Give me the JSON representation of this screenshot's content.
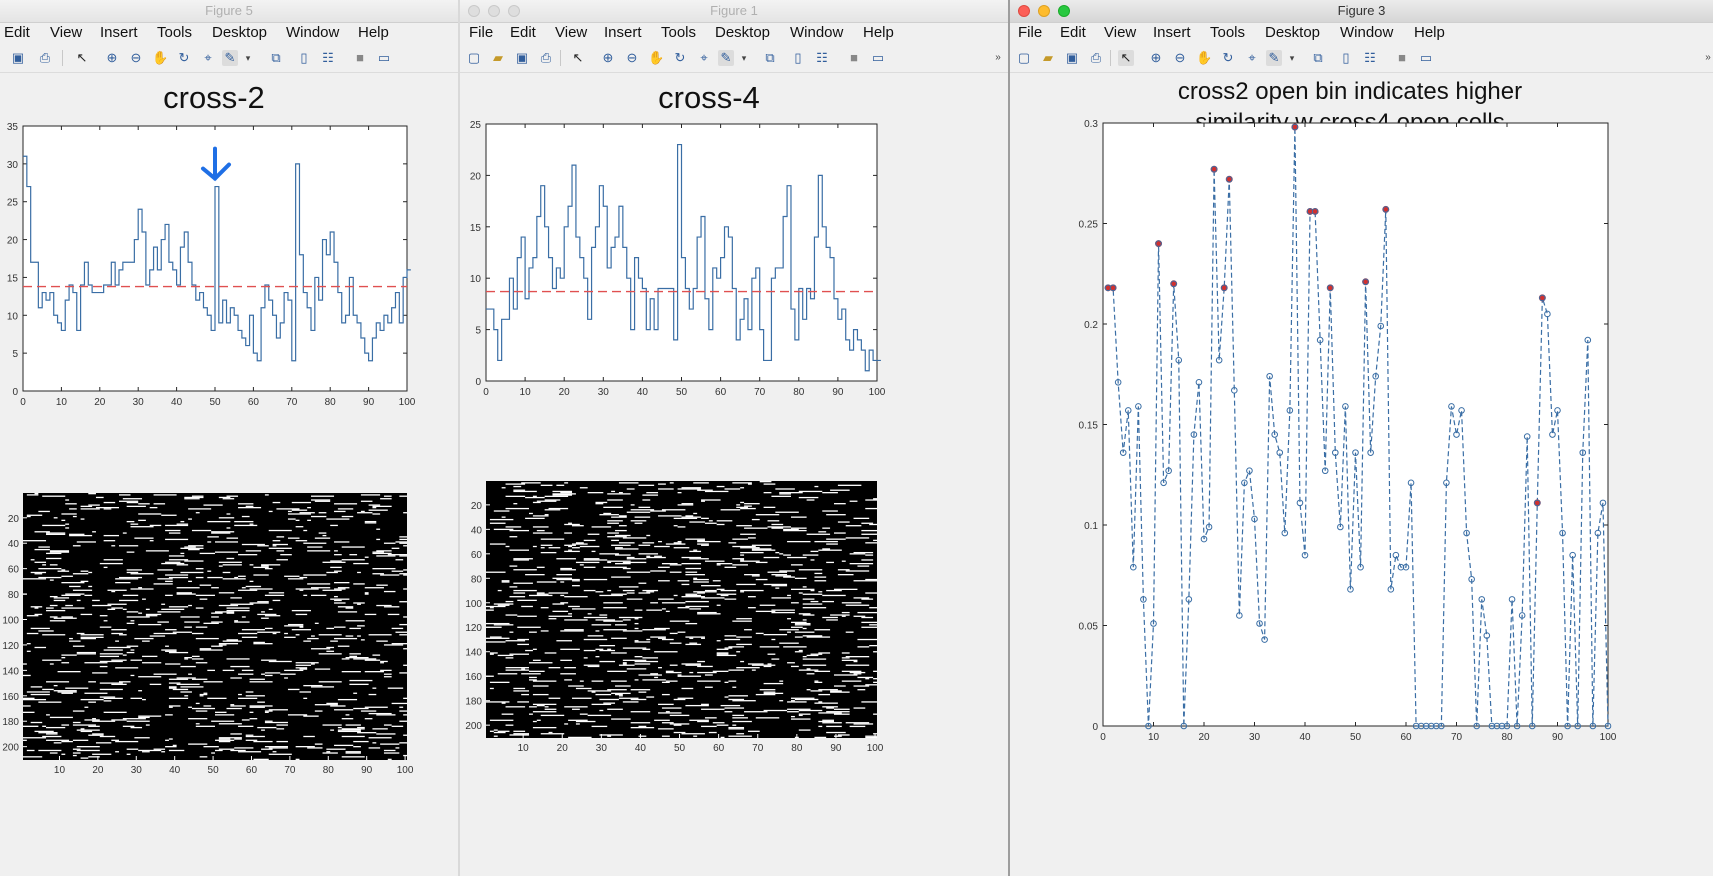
{
  "windows": [
    {
      "title": "Figure 5",
      "menu": [
        "Edit",
        "View",
        "Insert",
        "Tools",
        "Desktop",
        "Window",
        "Help"
      ],
      "plot_title": "cross-2"
    },
    {
      "title": "Figure 1",
      "menu": [
        "File",
        "Edit",
        "View",
        "Insert",
        "Tools",
        "Desktop",
        "Window",
        "Help"
      ],
      "plot_title": "cross-4"
    },
    {
      "title": "Figure 3",
      "menu": [
        "File",
        "Edit",
        "View",
        "Insert",
        "Tools",
        "Desktop",
        "Window",
        "Help"
      ],
      "plot_title_line1": "cross2 open bin indicates higher",
      "plot_title_line2": "similarity w cross4 open cells"
    }
  ],
  "colors": {
    "line": "#3a6ea5",
    "dashed_red": "#e05050",
    "arrow": "#1f6fe5",
    "marker_red": "#d03030"
  },
  "chart_data": [
    {
      "type": "line",
      "title": "cross-2",
      "style": "stairs",
      "xlim": [
        0,
        100
      ],
      "ylim": [
        0,
        35
      ],
      "xticks": [
        0,
        10,
        20,
        30,
        40,
        50,
        60,
        70,
        80,
        90,
        100
      ],
      "yticks": [
        0,
        5,
        10,
        15,
        20,
        25,
        30,
        35
      ],
      "y": [
        31,
        27,
        17,
        17,
        11,
        13,
        12,
        13,
        10,
        9,
        8,
        12,
        14,
        13,
        8,
        14,
        17,
        14,
        13,
        13,
        13,
        14,
        14,
        17,
        14,
        16,
        17,
        17,
        17,
        20,
        24,
        21,
        14,
        16,
        19,
        16,
        20,
        22,
        17,
        16,
        14,
        19,
        21,
        17,
        14,
        12,
        13,
        11,
        10,
        8,
        27,
        9,
        12,
        9,
        11,
        10,
        8,
        7,
        6,
        10,
        5,
        4,
        11,
        14,
        12,
        10,
        7,
        9,
        13,
        12,
        4,
        30,
        18,
        13,
        11,
        8,
        15,
        12,
        20,
        18,
        21,
        17,
        13,
        9,
        10,
        15,
        10,
        9,
        7,
        5,
        4,
        7,
        9,
        8,
        10,
        9,
        11,
        13,
        9,
        15,
        16
      ],
      "mean_line": 13.8,
      "annotation": "arrow at x=50"
    },
    {
      "type": "line",
      "title": "cross-4",
      "style": "stairs",
      "xlim": [
        0,
        100
      ],
      "ylim": [
        0,
        25
      ],
      "xticks": [
        0,
        10,
        20,
        30,
        40,
        50,
        60,
        70,
        80,
        90,
        100
      ],
      "yticks": [
        0,
        5,
        10,
        15,
        20,
        25
      ],
      "y": [
        7,
        7,
        5,
        2,
        6,
        6,
        10,
        7,
        12,
        14,
        8,
        11,
        12,
        16,
        19,
        15,
        12,
        9,
        11,
        10,
        15,
        17,
        21,
        14,
        12,
        10,
        6,
        13,
        15,
        19,
        17,
        11,
        13,
        14,
        17,
        13,
        10,
        5,
        12,
        10,
        9,
        5,
        8,
        5,
        9,
        9,
        9,
        9,
        4,
        23,
        12,
        9,
        7,
        9,
        14,
        16,
        8,
        5,
        11,
        10,
        12,
        15,
        14,
        9,
        4,
        6,
        8,
        5,
        10,
        11,
        5,
        2,
        2,
        10,
        11,
        11,
        16,
        19,
        7,
        4,
        9,
        6,
        9,
        8,
        14,
        20,
        15,
        13,
        12,
        8,
        6,
        7,
        4,
        3,
        5,
        4,
        3,
        1,
        3,
        2,
        2
      ],
      "mean_line": 8.7
    },
    {
      "type": "line",
      "title": "cross2 open bin indicates higher similarity w cross4 open cells",
      "style": "dashed-with-circle-markers",
      "xlim": [
        0,
        100
      ],
      "ylim": [
        0,
        0.3
      ],
      "xticks": [
        0,
        10,
        20,
        30,
        40,
        50,
        60,
        70,
        80,
        90,
        100
      ],
      "yticks": [
        0,
        0.05,
        0.1,
        0.15,
        0.2,
        0.25,
        0.3
      ],
      "x": [
        1,
        2,
        3,
        4,
        5,
        6,
        7,
        8,
        9,
        10,
        11,
        12,
        13,
        14,
        15,
        16,
        17,
        18,
        19,
        20,
        21,
        22,
        23,
        24,
        25,
        26,
        27,
        28,
        29,
        30,
        31,
        32,
        33,
        34,
        35,
        36,
        37,
        38,
        39,
        40,
        41,
        42,
        43,
        44,
        45,
        46,
        47,
        48,
        49,
        50,
        51,
        52,
        53,
        54,
        55,
        56,
        57,
        58,
        59,
        60,
        61,
        62,
        63,
        64,
        65,
        66,
        67,
        68,
        69,
        70,
        71,
        72,
        73,
        74,
        75,
        76,
        77,
        78,
        79,
        80,
        81,
        82,
        83,
        84,
        85,
        86,
        87,
        88,
        89,
        90,
        91,
        92,
        93,
        94,
        95,
        96,
        97,
        98,
        99,
        100
      ],
      "y": [
        0.218,
        0.218,
        0.171,
        0.136,
        0.157,
        0.079,
        0.159,
        0.063,
        0,
        0.051,
        0.24,
        0.121,
        0.127,
        0.22,
        0.182,
        0,
        0.063,
        0.145,
        0.171,
        0.093,
        0.099,
        0.277,
        0.182,
        0.218,
        0.272,
        0.167,
        0.055,
        0.121,
        0.127,
        0.103,
        0.051,
        0.043,
        0.174,
        0.145,
        0.136,
        0.096,
        0.157,
        0.298,
        0.111,
        0.085,
        0.256,
        0.256,
        0.192,
        0.127,
        0.218,
        0.136,
        0.099,
        0.159,
        0.068,
        0.136,
        0.079,
        0.221,
        0.136,
        0.174,
        0.199,
        0.257,
        0.068,
        0.085,
        0.079,
        0.079,
        0.121,
        0,
        0,
        0,
        0,
        0,
        0,
        0.121,
        0.159,
        0.145,
        0.157,
        0.096,
        0.073,
        0,
        0.063,
        0.045,
        0,
        0,
        0,
        0,
        0.063,
        0,
        0.055,
        0.144,
        0,
        0.111,
        0.213,
        0.205,
        0.145,
        0.157,
        0.096,
        0,
        0.085,
        0,
        0.136,
        0.192,
        0,
        0.096,
        0.111,
        0
      ],
      "highlighted_x": [
        1,
        2,
        11,
        14,
        22,
        24,
        25,
        38,
        41,
        42,
        45,
        52,
        56,
        86,
        87
      ]
    },
    {
      "type": "heatmap",
      "title": "",
      "colormap": "binary (black background, white open bins)",
      "xticks": [
        10,
        20,
        30,
        40,
        50,
        60,
        70,
        80,
        90,
        100
      ],
      "yticks": [
        20,
        40,
        60,
        80,
        100,
        120,
        140,
        160,
        180,
        200
      ],
      "rows": 210,
      "columns": 100
    },
    {
      "type": "heatmap",
      "title": "",
      "colormap": "binary (black background, white open bins)",
      "xticks": [
        10,
        20,
        30,
        40,
        50,
        60,
        70,
        80,
        90,
        100
      ],
      "yticks": [
        20,
        40,
        60,
        80,
        100,
        120,
        140,
        160,
        180,
        200
      ],
      "rows": 210,
      "columns": 100
    }
  ]
}
